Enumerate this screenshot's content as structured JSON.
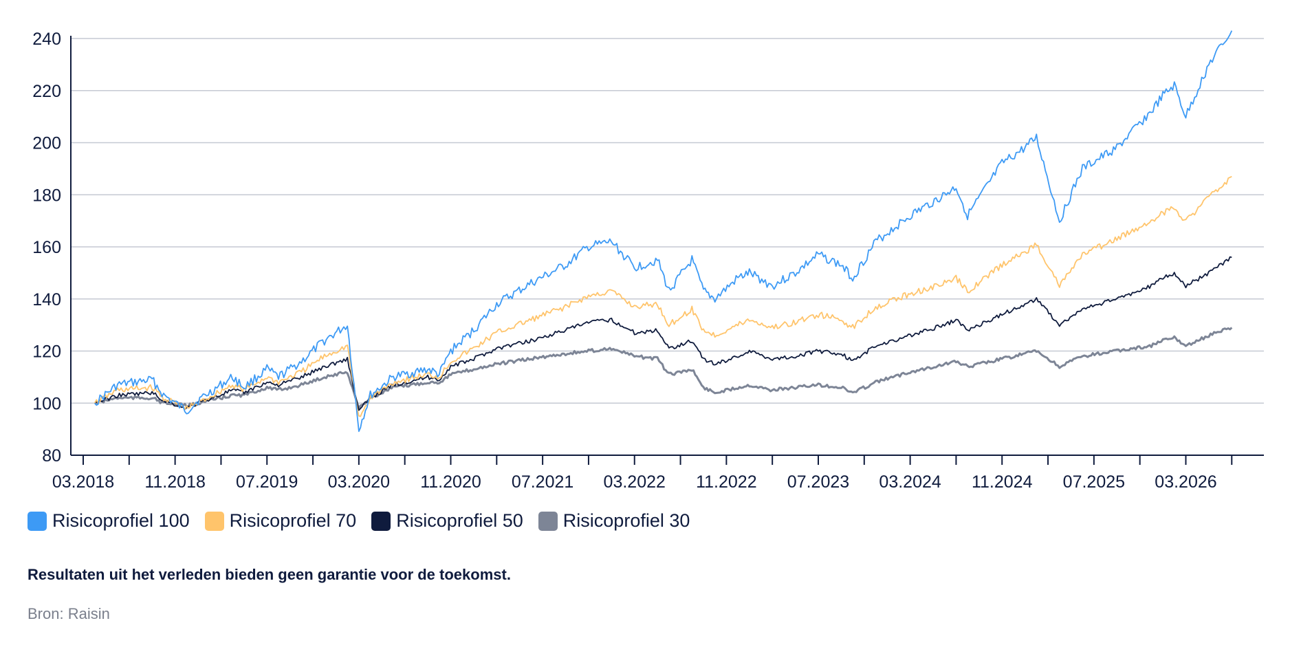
{
  "chart_data": {
    "type": "line",
    "title": "",
    "xlabel": "",
    "ylabel": "",
    "ylim": [
      80,
      240
    ],
    "yticks": [
      80,
      100,
      120,
      140,
      160,
      180,
      200,
      220,
      240
    ],
    "x_tick_labels": [
      "03.2018",
      "11.2018",
      "07.2019",
      "03.2020",
      "11.2020",
      "07.2021",
      "03.2022",
      "11.2022",
      "07.2023",
      "03.2024",
      "11.2024",
      "07.2025",
      "03.2026"
    ],
    "x_range": [
      "2018-03",
      "2026-08"
    ],
    "grid": "horizontal",
    "legend_position": "bottom-left",
    "series": [
      {
        "name": "Risicoprofiel 100",
        "color": "#3d9af5",
        "points": [
          [
            "2018-04",
            100
          ],
          [
            "2018-06",
            107
          ],
          [
            "2018-09",
            109
          ],
          [
            "2018-10",
            103
          ],
          [
            "2018-12",
            97
          ],
          [
            "2019-01",
            101
          ],
          [
            "2019-04",
            110
          ],
          [
            "2019-05",
            106
          ],
          [
            "2019-07",
            113
          ],
          [
            "2019-08",
            110
          ],
          [
            "2019-10",
            116
          ],
          [
            "2019-12",
            124
          ],
          [
            "2020-02",
            130
          ],
          [
            "2020-03",
            90
          ],
          [
            "2020-04",
            103
          ],
          [
            "2020-06",
            110
          ],
          [
            "2020-09",
            113
          ],
          [
            "2020-10",
            111
          ],
          [
            "2020-11",
            120
          ],
          [
            "2021-01",
            128
          ],
          [
            "2021-03",
            138
          ],
          [
            "2021-06",
            146
          ],
          [
            "2021-09",
            153
          ],
          [
            "2021-11",
            160
          ],
          [
            "2022-01",
            162
          ],
          [
            "2022-03",
            152
          ],
          [
            "2022-05",
            155
          ],
          [
            "2022-06",
            143
          ],
          [
            "2022-08",
            155
          ],
          [
            "2022-09",
            143
          ],
          [
            "2022-10",
            140
          ],
          [
            "2022-12",
            148
          ],
          [
            "2023-01",
            150
          ],
          [
            "2023-03",
            145
          ],
          [
            "2023-05",
            150
          ],
          [
            "2023-07",
            157
          ],
          [
            "2023-09",
            153
          ],
          [
            "2023-10",
            148
          ],
          [
            "2023-12",
            162
          ],
          [
            "2024-03",
            172
          ],
          [
            "2024-06",
            180
          ],
          [
            "2024-07",
            183
          ],
          [
            "2024-08",
            172
          ],
          [
            "2024-11",
            192
          ],
          [
            "2025-01",
            198
          ],
          [
            "2025-02",
            202
          ],
          [
            "2025-04",
            170
          ],
          [
            "2025-06",
            190
          ],
          [
            "2025-09",
            198
          ],
          [
            "2025-12",
            212
          ],
          [
            "2026-01",
            218
          ],
          [
            "2026-02",
            222
          ],
          [
            "2026-03",
            210
          ],
          [
            "2026-05",
            230
          ],
          [
            "2026-07",
            243
          ]
        ]
      },
      {
        "name": "Risicoprofiel 70",
        "color": "#ffc46b",
        "points": [
          [
            "2018-04",
            100
          ],
          [
            "2018-06",
            105
          ],
          [
            "2018-09",
            106
          ],
          [
            "2018-10",
            102
          ],
          [
            "2018-12",
            98
          ],
          [
            "2019-01",
            100
          ],
          [
            "2019-04",
            107
          ],
          [
            "2019-05",
            105
          ],
          [
            "2019-07",
            110
          ],
          [
            "2019-08",
            108
          ],
          [
            "2019-10",
            112
          ],
          [
            "2019-12",
            118
          ],
          [
            "2020-02",
            122
          ],
          [
            "2020-03",
            94
          ],
          [
            "2020-04",
            102
          ],
          [
            "2020-06",
            108
          ],
          [
            "2020-09",
            111
          ],
          [
            "2020-10",
            110
          ],
          [
            "2020-11",
            116
          ],
          [
            "2021-01",
            121
          ],
          [
            "2021-03",
            127
          ],
          [
            "2021-06",
            132
          ],
          [
            "2021-09",
            137
          ],
          [
            "2021-11",
            141
          ],
          [
            "2022-01",
            143
          ],
          [
            "2022-03",
            137
          ],
          [
            "2022-05",
            138
          ],
          [
            "2022-06",
            130
          ],
          [
            "2022-08",
            136
          ],
          [
            "2022-09",
            128
          ],
          [
            "2022-10",
            126
          ],
          [
            "2022-12",
            130
          ],
          [
            "2023-01",
            132
          ],
          [
            "2023-03",
            129
          ],
          [
            "2023-05",
            131
          ],
          [
            "2023-07",
            134
          ],
          [
            "2023-09",
            132
          ],
          [
            "2023-10",
            129
          ],
          [
            "2023-12",
            137
          ],
          [
            "2024-03",
            142
          ],
          [
            "2024-06",
            146
          ],
          [
            "2024-07",
            148
          ],
          [
            "2024-08",
            143
          ],
          [
            "2024-11",
            153
          ],
          [
            "2025-01",
            158
          ],
          [
            "2025-02",
            161
          ],
          [
            "2025-04",
            145
          ],
          [
            "2025-06",
            157
          ],
          [
            "2025-09",
            163
          ],
          [
            "2025-12",
            170
          ],
          [
            "2026-01",
            173
          ],
          [
            "2026-02",
            175
          ],
          [
            "2026-03",
            170
          ],
          [
            "2026-05",
            179
          ],
          [
            "2026-07",
            187
          ]
        ]
      },
      {
        "name": "Risicoprofiel 50",
        "color": "#0f1b3d",
        "points": [
          [
            "2018-04",
            100
          ],
          [
            "2018-06",
            103
          ],
          [
            "2018-09",
            104
          ],
          [
            "2018-10",
            101
          ],
          [
            "2018-12",
            98
          ],
          [
            "2019-01",
            100
          ],
          [
            "2019-04",
            105
          ],
          [
            "2019-05",
            104
          ],
          [
            "2019-07",
            108
          ],
          [
            "2019-08",
            107
          ],
          [
            "2019-10",
            110
          ],
          [
            "2019-12",
            114
          ],
          [
            "2020-02",
            117
          ],
          [
            "2020-03",
            97
          ],
          [
            "2020-04",
            102
          ],
          [
            "2020-06",
            107
          ],
          [
            "2020-09",
            110
          ],
          [
            "2020-10",
            109
          ],
          [
            "2020-11",
            114
          ],
          [
            "2021-01",
            117
          ],
          [
            "2021-03",
            121
          ],
          [
            "2021-06",
            124
          ],
          [
            "2021-09",
            128
          ],
          [
            "2021-11",
            131
          ],
          [
            "2022-01",
            132
          ],
          [
            "2022-03",
            127
          ],
          [
            "2022-05",
            128
          ],
          [
            "2022-06",
            121
          ],
          [
            "2022-08",
            124
          ],
          [
            "2022-09",
            117
          ],
          [
            "2022-10",
            115
          ],
          [
            "2022-12",
            118
          ],
          [
            "2023-01",
            120
          ],
          [
            "2023-03",
            117
          ],
          [
            "2023-05",
            118
          ],
          [
            "2023-07",
            120
          ],
          [
            "2023-09",
            119
          ],
          [
            "2023-10",
            116
          ],
          [
            "2023-12",
            122
          ],
          [
            "2024-03",
            126
          ],
          [
            "2024-06",
            130
          ],
          [
            "2024-07",
            132
          ],
          [
            "2024-08",
            128
          ],
          [
            "2024-11",
            134
          ],
          [
            "2025-01",
            138
          ],
          [
            "2025-02",
            140
          ],
          [
            "2025-04",
            130
          ],
          [
            "2025-06",
            136
          ],
          [
            "2025-09",
            140
          ],
          [
            "2025-12",
            145
          ],
          [
            "2026-01",
            148
          ],
          [
            "2026-02",
            150
          ],
          [
            "2026-03",
            145
          ],
          [
            "2026-05",
            150
          ],
          [
            "2026-07",
            156
          ]
        ]
      },
      {
        "name": "Risicoprofiel 30",
        "color": "#7d8596",
        "points": [
          [
            "2018-04",
            100
          ],
          [
            "2018-06",
            102
          ],
          [
            "2018-09",
            102
          ],
          [
            "2018-10",
            100
          ],
          [
            "2018-12",
            99
          ],
          [
            "2019-01",
            100
          ],
          [
            "2019-04",
            103
          ],
          [
            "2019-05",
            103
          ],
          [
            "2019-07",
            106
          ],
          [
            "2019-08",
            105
          ],
          [
            "2019-10",
            107
          ],
          [
            "2019-12",
            110
          ],
          [
            "2020-02",
            112
          ],
          [
            "2020-03",
            98
          ],
          [
            "2020-04",
            102
          ],
          [
            "2020-06",
            106
          ],
          [
            "2020-09",
            108
          ],
          [
            "2020-10",
            108
          ],
          [
            "2020-11",
            111
          ],
          [
            "2021-01",
            113
          ],
          [
            "2021-03",
            115
          ],
          [
            "2021-06",
            117
          ],
          [
            "2021-09",
            119
          ],
          [
            "2021-11",
            120
          ],
          [
            "2022-01",
            121
          ],
          [
            "2022-03",
            118
          ],
          [
            "2022-05",
            117
          ],
          [
            "2022-06",
            111
          ],
          [
            "2022-08",
            113
          ],
          [
            "2022-09",
            106
          ],
          [
            "2022-10",
            104
          ],
          [
            "2022-12",
            106
          ],
          [
            "2023-01",
            107
          ],
          [
            "2023-03",
            105
          ],
          [
            "2023-05",
            106
          ],
          [
            "2023-07",
            107
          ],
          [
            "2023-09",
            106
          ],
          [
            "2023-10",
            104
          ],
          [
            "2023-12",
            108
          ],
          [
            "2024-03",
            112
          ],
          [
            "2024-06",
            115
          ],
          [
            "2024-07",
            116
          ],
          [
            "2024-08",
            114
          ],
          [
            "2024-11",
            117
          ],
          [
            "2025-01",
            119
          ],
          [
            "2025-02",
            120
          ],
          [
            "2025-04",
            114
          ],
          [
            "2025-06",
            118
          ],
          [
            "2025-09",
            120
          ],
          [
            "2025-12",
            122
          ],
          [
            "2026-01",
            124
          ],
          [
            "2026-02",
            125
          ],
          [
            "2026-03",
            122
          ],
          [
            "2026-05",
            126
          ],
          [
            "2026-07",
            129
          ]
        ]
      }
    ]
  },
  "footer": {
    "disclaimer": "Resultaten uit het verleden bieden geen garantie voor de toekomst.",
    "source": "Bron: Raisin"
  }
}
